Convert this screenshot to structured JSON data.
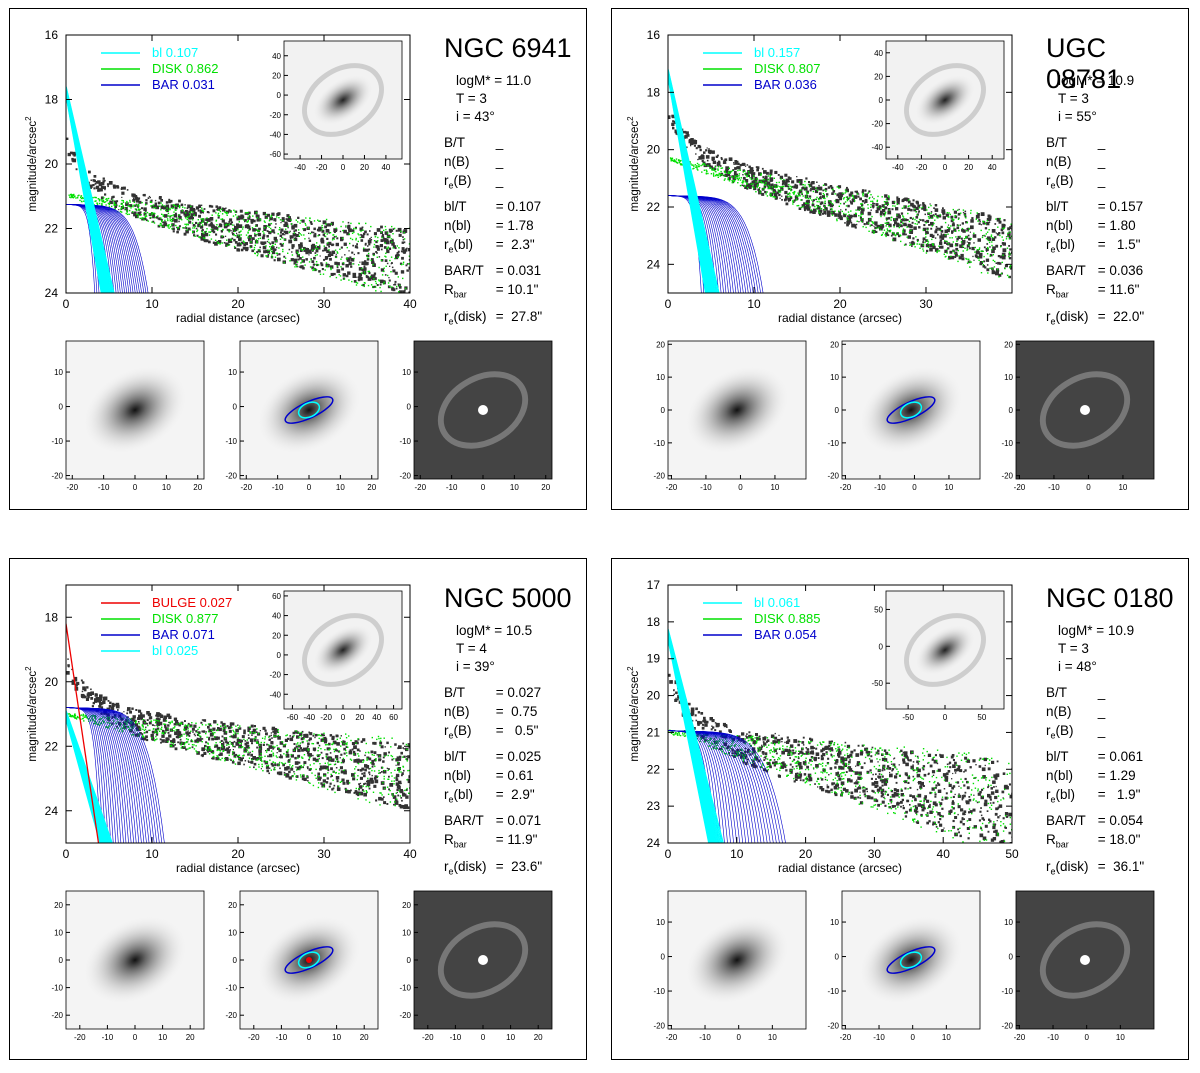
{
  "colors": {
    "bl": "#00ffff",
    "disk": "#00e000",
    "bar": "#0000cc",
    "bulge": "#ee0000",
    "data": "#333333"
  },
  "chart_data": [
    {
      "type": "scatter",
      "galaxy": "NGC 6941",
      "xlabel": "radial distance (arcsec)",
      "ylabel": "magnitude/arcsec^2",
      "xlim": [
        0,
        40
      ],
      "ylim": [
        24,
        16
      ],
      "xticks": [
        0,
        10,
        20,
        30,
        40
      ],
      "yticks": [
        16,
        18,
        20,
        22,
        24
      ],
      "components": [
        {
          "key": "bl",
          "name": "bl",
          "value": "0.107",
          "profile": {
            "mu0": 17.6,
            "slope": 1.35,
            "mu_end": 24
          }
        },
        {
          "key": "disk",
          "name": "DISK",
          "value": "0.862",
          "profile": {
            "mu0": 20.95,
            "slope": 0.054
          }
        },
        {
          "key": "bar",
          "name": "BAR",
          "value": "0.031",
          "profile": {
            "mu0": 21.25,
            "rbar": 10.1
          }
        }
      ],
      "params": {
        "logM": "logM* = 11.0",
        "T": "T = 3",
        "i": "i = 43°",
        "BT": "_",
        "nB": "_",
        "reB": "_",
        "blT": "= 0.107",
        "nbl": "= 1.78",
        "rebl": "=  2.3\"",
        "BART": "= 0.031",
        "Rbar": "= 10.1\"",
        "redisk": "=  27.8\""
      },
      "inset": {
        "xticks": [
          -40,
          -20,
          0,
          20,
          40
        ],
        "yticks": [
          -60,
          -40,
          -20,
          0,
          20,
          40
        ],
        "xlim": [
          -55,
          55
        ],
        "ylim": [
          -65,
          55
        ]
      },
      "thumbs": {
        "xticks": [
          -20,
          -10,
          0,
          10,
          20
        ],
        "yticks": [
          -20,
          -10,
          0,
          10
        ],
        "xlim": [
          -22,
          22
        ],
        "ylim": [
          -21,
          19
        ]
      }
    },
    {
      "type": "scatter",
      "galaxy": "UGC 08781",
      "xlabel": "radial distance (arcsec)",
      "ylabel": "magnitude/arcsec^2",
      "xlim": [
        0,
        40
      ],
      "ylim": [
        25,
        16
      ],
      "xticks": [
        0,
        10,
        20,
        30
      ],
      "yticks": [
        16,
        18,
        20,
        22,
        24
      ],
      "components": [
        {
          "key": "bl",
          "name": "bl",
          "value": "0.157",
          "profile": {
            "mu0": 17.2,
            "slope": 1.55,
            "mu_end": 25
          }
        },
        {
          "key": "disk",
          "name": "DISK",
          "value": "0.807",
          "profile": {
            "mu0": 20.3,
            "slope": 0.08
          }
        },
        {
          "key": "bar",
          "name": "BAR",
          "value": "0.036",
          "profile": {
            "mu0": 21.6,
            "rbar": 11.6
          }
        }
      ],
      "params": {
        "logM": "logM* = 10.9",
        "T": "T = 3",
        "i": "i = 55°",
        "BT": "_",
        "nB": "_",
        "reB": "_",
        "blT": "= 0.157",
        "nbl": "= 1.80",
        "rebl": "=   1.5\"",
        "BART": "= 0.036",
        "Rbar": "= 11.6\"",
        "redisk": "=  22.0\""
      },
      "inset": {
        "xticks": [
          -40,
          -20,
          0,
          20,
          40
        ],
        "yticks": [
          -40,
          -20,
          0,
          20,
          40
        ],
        "xlim": [
          -50,
          50
        ],
        "ylim": [
          -50,
          50
        ]
      },
      "thumbs": {
        "xticks": [
          -20,
          -10,
          0,
          10
        ],
        "yticks": [
          -20,
          -10,
          0,
          10,
          20
        ],
        "xlim": [
          -21,
          19
        ],
        "ylim": [
          -21,
          21
        ]
      }
    },
    {
      "type": "scatter",
      "galaxy": "NGC 5000",
      "xlabel": "radial distance (arcsec)",
      "ylabel": "magnitude/arcsec^2",
      "xlim": [
        0,
        40
      ],
      "ylim": [
        25,
        17
      ],
      "xticks": [
        0,
        10,
        20,
        30,
        40
      ],
      "yticks": [
        18,
        20,
        22,
        24
      ],
      "components": [
        {
          "key": "bulge",
          "name": "BULGE",
          "value": "0.027",
          "profile": {
            "mu0": 18.2,
            "slope": 1.8,
            "mu_end": 25
          }
        },
        {
          "key": "disk",
          "name": "DISK",
          "value": "0.877",
          "profile": {
            "mu0": 21.0,
            "slope": 0.048
          }
        },
        {
          "key": "bar",
          "name": "BAR",
          "value": "0.071",
          "profile": {
            "mu0": 20.8,
            "rbar": 11.9
          }
        },
        {
          "key": "bl",
          "name": "bl",
          "value": "0.025",
          "profile": {
            "mu0": 20.9,
            "slope": 0.9,
            "mu_end": 25
          }
        }
      ],
      "params": {
        "logM": "logM* = 10.5",
        "T": "T = 4",
        "i": "i = 39°",
        "BT": "= 0.027",
        "nB": "=  0.75",
        "reB": "=   0.5\"",
        "blT": "= 0.025",
        "nbl": "= 0.61",
        "rebl": "=  2.9\"",
        "BART": "= 0.071",
        "Rbar": "= 11.9\"",
        "redisk": "=  23.6\""
      },
      "inset": {
        "xticks": [
          -60,
          -40,
          -20,
          0,
          20,
          40,
          60
        ],
        "yticks": [
          -40,
          -20,
          0,
          20,
          40,
          60
        ],
        "xlim": [
          -70,
          70
        ],
        "ylim": [
          -55,
          65
        ]
      },
      "thumbs": {
        "xticks": [
          -20,
          -10,
          0,
          10,
          20
        ],
        "yticks": [
          -20,
          -10,
          0,
          10,
          20
        ],
        "xlim": [
          -25,
          25
        ],
        "ylim": [
          -25,
          25
        ]
      }
    },
    {
      "type": "scatter",
      "galaxy": "NGC 0180",
      "xlabel": "radial distance (arcsec)",
      "ylabel": "magnitude/arcsec^2",
      "xlim": [
        0,
        50
      ],
      "ylim": [
        24,
        17
      ],
      "xticks": [
        0,
        10,
        20,
        30,
        40,
        50
      ],
      "yticks": [
        17,
        18,
        19,
        20,
        21,
        22,
        23,
        24
      ],
      "components": [
        {
          "key": "bl",
          "name": "bl",
          "value": "0.061",
          "profile": {
            "mu0": 18.2,
            "slope": 0.85,
            "mu_end": 24
          }
        },
        {
          "key": "disk",
          "name": "DISK",
          "value": "0.885",
          "profile": {
            "mu0": 20.95,
            "slope": 0.042
          }
        },
        {
          "key": "bar",
          "name": "BAR",
          "value": "0.054",
          "profile": {
            "mu0": 20.95,
            "rbar": 18.0
          }
        }
      ],
      "params": {
        "logM": "logM* = 10.9",
        "T": "T = 3",
        "i": "i = 48°",
        "BT": "_",
        "nB": "_",
        "reB": "_",
        "blT": "= 0.061",
        "nbl": "= 1.29",
        "rebl": "=   1.9\"",
        "BART": "= 0.054",
        "Rbar": "= 18.0\"",
        "redisk": "=  36.1\""
      },
      "inset": {
        "xticks": [
          -50,
          0,
          50
        ],
        "yticks": [
          -50,
          0,
          50
        ],
        "xlim": [
          -80,
          80
        ],
        "ylim": [
          -85,
          75
        ]
      },
      "thumbs": {
        "xticks": [
          -20,
          -10,
          0,
          10
        ],
        "yticks": [
          -20,
          -10,
          0,
          10
        ],
        "xlim": [
          -21,
          20
        ],
        "ylim": [
          -21,
          19
        ]
      }
    }
  ],
  "labels": {
    "BT": "B/T",
    "nB": "n(B)",
    "reB": "(B)",
    "blT": "bl/T",
    "nbl": "n(bl)",
    "rebl": "(bl)",
    "BART": "BAR/T",
    "Rbar": "bar",
    "redisk": "(disk)"
  }
}
